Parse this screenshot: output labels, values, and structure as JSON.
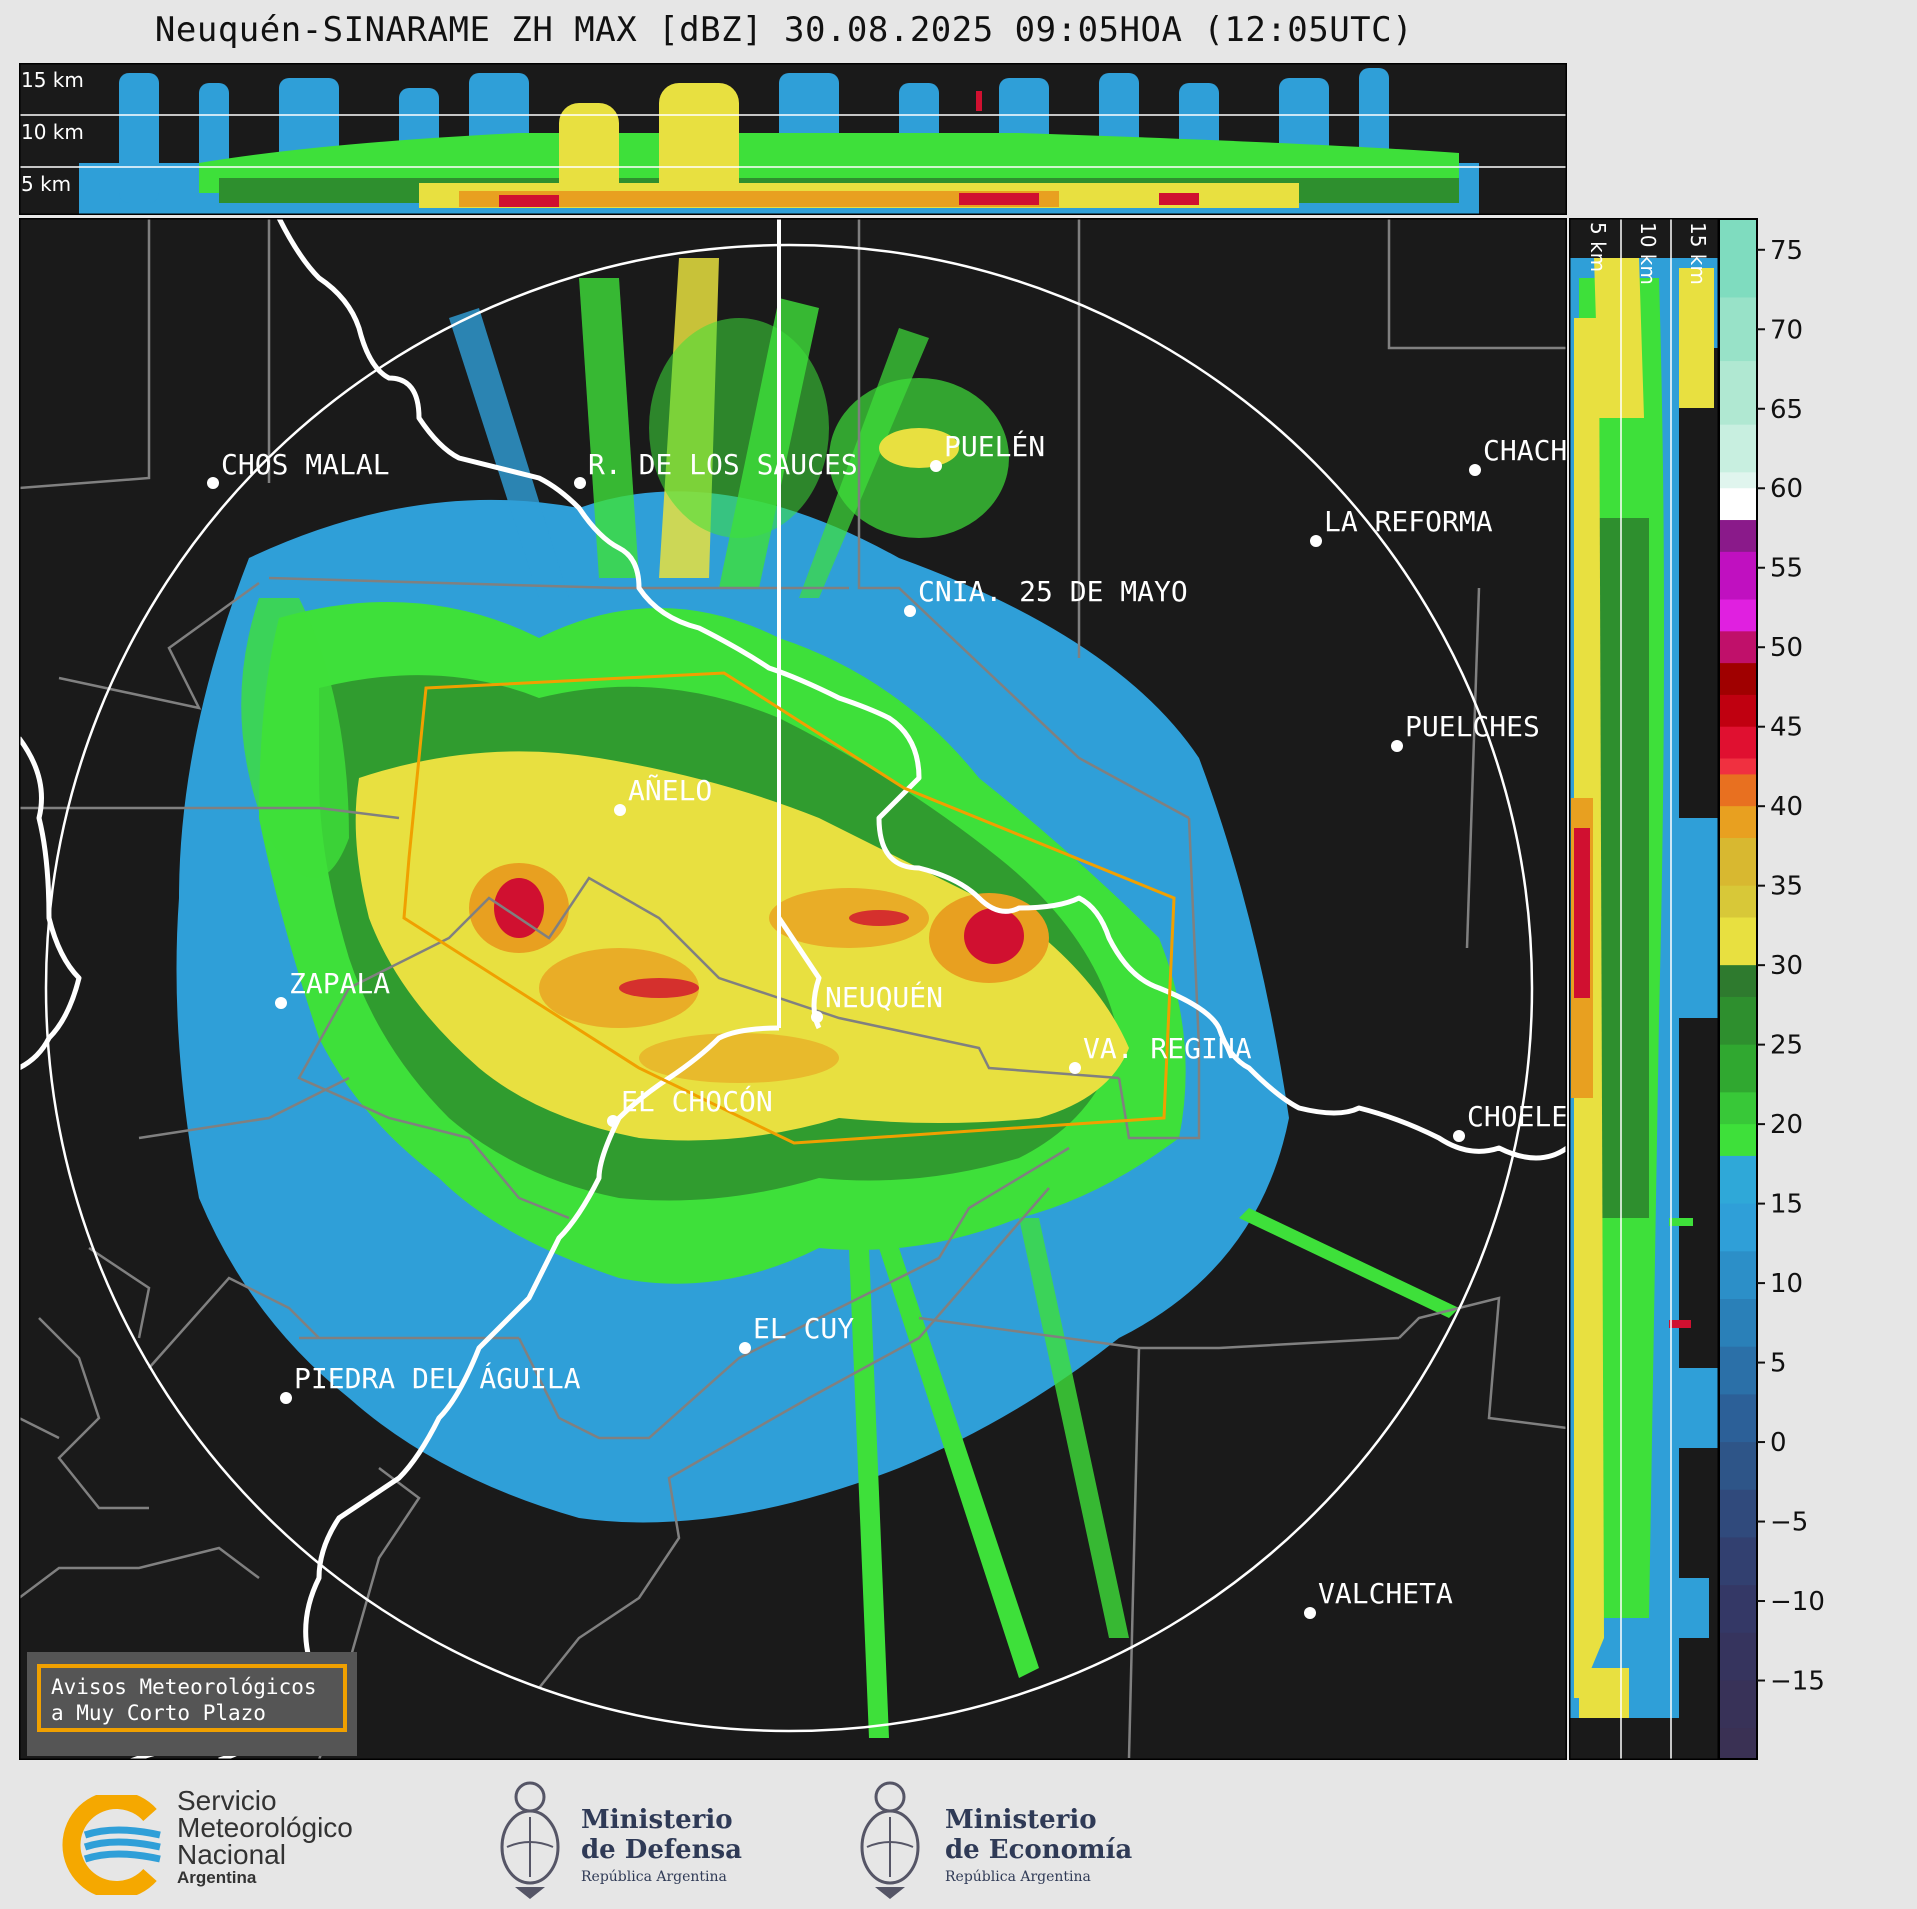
{
  "title": "Neuquén-SINARAME ZH MAX [dBZ] 30.08.2025 09:05HOA (12:05UTC)",
  "height_labels": [
    "15 km",
    "10 km",
    "5 km"
  ],
  "cities": [
    {
      "name": "CHOS MALAL"
    },
    {
      "name": "R. DE LOS SAUCES"
    },
    {
      "name": "PUELÉN"
    },
    {
      "name": "CHACH"
    },
    {
      "name": "LA REFORMA"
    },
    {
      "name": "CNIA. 25 DE MAYO"
    },
    {
      "name": "PUELCHES"
    },
    {
      "name": "AÑELO"
    },
    {
      "name": "ZAPALA"
    },
    {
      "name": "NEUQUÉN"
    },
    {
      "name": "VA. REGINA"
    },
    {
      "name": "EL CHOCÓN"
    },
    {
      "name": "CHOELE"
    },
    {
      "name": "EL CUY"
    },
    {
      "name": "PIEDRA DEL ÁGUILA"
    },
    {
      "name": "VALCHETA"
    }
  ],
  "warning_box": {
    "line1": "Avisos Meteorológicos",
    "line2": "a Muy Corto Plazo"
  },
  "colorbar": {
    "unit": "dBZ",
    "ticks": [
      "75",
      "70",
      "65",
      "60",
      "55",
      "50",
      "45",
      "40",
      "35",
      "30",
      "25",
      "20",
      "15",
      "10",
      "5",
      "0",
      "−5",
      "−10",
      "−15"
    ]
  },
  "logos": {
    "smn": {
      "line1": "Servicio",
      "line2": "Meteorológico",
      "line3": "Nacional",
      "line4": "Argentina"
    },
    "defensa": {
      "line1": "Ministerio",
      "line2": "de Defensa",
      "line3": "República Argentina"
    },
    "economia": {
      "line1": "Ministerio",
      "line2": "de Economía",
      "line3": "República Argentina"
    }
  },
  "colors": {
    "background": "#1a1a1a",
    "range_ring": "#ffffff",
    "province_border": "#ffffff",
    "dept_border": "#808080",
    "warning_polygon": "#f0a000",
    "reflectivity_low": "#2f9fd8",
    "reflectivity_mid": "#3ee03a",
    "reflectivity_high": "#e8e040",
    "reflectivity_max": "#d01030"
  }
}
